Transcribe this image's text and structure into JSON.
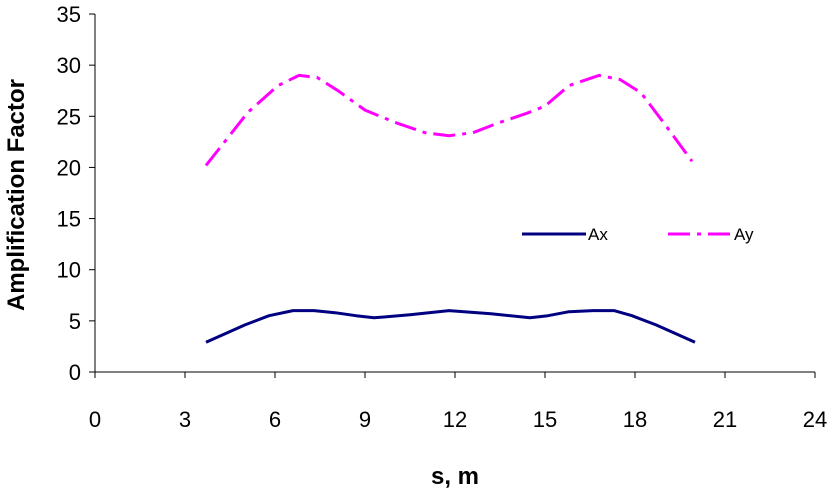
{
  "chart_data": {
    "type": "line",
    "title": "",
    "xlabel": "s, m",
    "ylabel": "Amplification Factor",
    "xlim": [
      0,
      24
    ],
    "ylim": [
      0,
      35
    ],
    "xticks": [
      0,
      3,
      6,
      9,
      12,
      15,
      18,
      21,
      24
    ],
    "yticks": [
      0,
      5,
      10,
      15,
      20,
      25,
      30,
      35
    ],
    "grid": false,
    "legend_position": "center-right",
    "series": [
      {
        "name": "Ax",
        "color": "#000080",
        "style": "solid",
        "x": [
          3.7,
          5.0,
          5.8,
          6.6,
          7.3,
          8.0,
          8.7,
          9.3,
          10.5,
          11.8,
          13.2,
          14.5,
          15.1,
          15.8,
          16.6,
          17.3,
          17.9,
          18.7,
          20.0
        ],
        "y": [
          2.9,
          4.6,
          5.5,
          6.0,
          6.0,
          5.8,
          5.5,
          5.3,
          5.6,
          6.0,
          5.7,
          5.3,
          5.5,
          5.9,
          6.0,
          6.0,
          5.5,
          4.6,
          2.9
        ]
      },
      {
        "name": "Ay",
        "color": "#FF00FF",
        "style": "dash-dot",
        "x": [
          3.7,
          5.1,
          6.1,
          6.8,
          7.4,
          8.1,
          9.0,
          10.0,
          11.0,
          11.8,
          12.6,
          13.4,
          14.4,
          15.0,
          15.8,
          16.8,
          17.5,
          18.2,
          19.0,
          19.9
        ],
        "y": [
          20.2,
          25.4,
          28.0,
          29.0,
          28.8,
          27.5,
          25.6,
          24.4,
          23.4,
          23.1,
          23.4,
          24.3,
          25.3,
          26.0,
          28.0,
          29.0,
          28.6,
          27.3,
          24.2,
          20.6
        ]
      }
    ]
  }
}
